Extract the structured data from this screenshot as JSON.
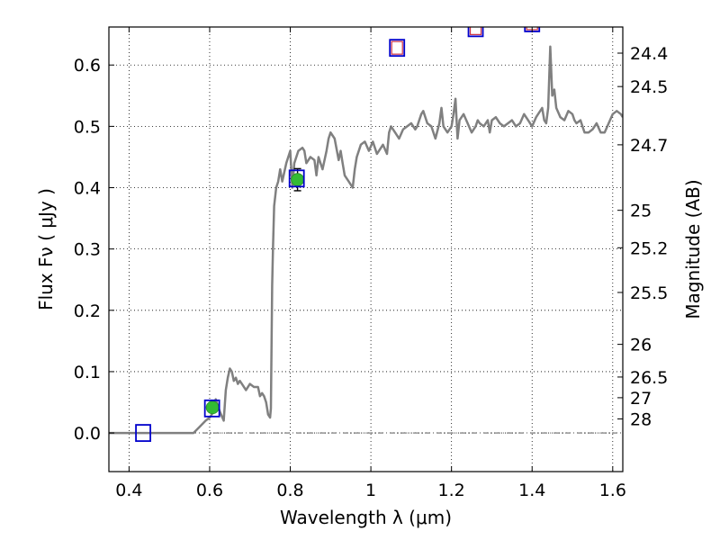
{
  "chart_data": {
    "type": "line",
    "xlabel": "Wavelength  λ (μm)",
    "ylabel": "Flux  Fν  ( μJy )",
    "y2label": "Magnitude (AB)",
    "xlim": [
      0.35,
      1.625
    ],
    "ylim": [
      -0.063,
      0.662
    ],
    "grid": true,
    "xticks": [
      {
        "value": 0.4,
        "label": "0.4"
      },
      {
        "value": 0.6,
        "label": "0.6"
      },
      {
        "value": 0.8,
        "label": "0.8"
      },
      {
        "value": 1.0,
        "label": "1"
      },
      {
        "value": 1.2,
        "label": "1.2"
      },
      {
        "value": 1.4,
        "label": "1.4"
      },
      {
        "value": 1.6,
        "label": "1.6"
      }
    ],
    "yticks": [
      {
        "value": 0.0,
        "label": "0.0"
      },
      {
        "value": 0.1,
        "label": "0.1"
      },
      {
        "value": 0.2,
        "label": "0.2"
      },
      {
        "value": 0.3,
        "label": "0.3"
      },
      {
        "value": 0.4,
        "label": "0.4"
      },
      {
        "value": 0.5,
        "label": "0.5"
      },
      {
        "value": 0.6,
        "label": "0.6"
      }
    ],
    "y2ticks": [
      {
        "flux": 0.6194,
        "label": "24.4"
      },
      {
        "flux": 0.5649,
        "label": "24.5"
      },
      {
        "flux": 0.4699,
        "label": "24.7"
      },
      {
        "flux": 0.3631,
        "label": "25"
      },
      {
        "flux": 0.302,
        "label": "25.2"
      },
      {
        "flux": 0.2291,
        "label": "25.5"
      },
      {
        "flux": 0.1445,
        "label": "26"
      },
      {
        "flux": 0.0912,
        "label": "26.5"
      },
      {
        "flux": 0.0575,
        "label": "27"
      },
      {
        "flux": 0.0229,
        "label": "28"
      }
    ],
    "series": [
      {
        "kind": "model_spectrum",
        "color": "#808080",
        "x": [
          0.35,
          0.56,
          0.575,
          0.59,
          0.6,
          0.61,
          0.615,
          0.625,
          0.635,
          0.64,
          0.645,
          0.65,
          0.655,
          0.66,
          0.665,
          0.67,
          0.675,
          0.68,
          0.69,
          0.7,
          0.71,
          0.72,
          0.725,
          0.73,
          0.735,
          0.74,
          0.745,
          0.75,
          0.752,
          0.755,
          0.757,
          0.76,
          0.765,
          0.77,
          0.775,
          0.78,
          0.79,
          0.8,
          0.805,
          0.81,
          0.82,
          0.83,
          0.835,
          0.84,
          0.85,
          0.86,
          0.865,
          0.87,
          0.88,
          0.89,
          0.895,
          0.9,
          0.91,
          0.92,
          0.925,
          0.93,
          0.935,
          0.945,
          0.955,
          0.96,
          0.965,
          0.975,
          0.985,
          0.995,
          1.005,
          1.015,
          1.02,
          1.03,
          1.04,
          1.045,
          1.05,
          1.06,
          1.07,
          1.08,
          1.09,
          1.1,
          1.11,
          1.115,
          1.12,
          1.125,
          1.13,
          1.14,
          1.15,
          1.16,
          1.17,
          1.175,
          1.18,
          1.19,
          1.2,
          1.205,
          1.21,
          1.215,
          1.22,
          1.23,
          1.24,
          1.25,
          1.26,
          1.265,
          1.27,
          1.28,
          1.29,
          1.295,
          1.3,
          1.31,
          1.32,
          1.33,
          1.34,
          1.35,
          1.36,
          1.37,
          1.38,
          1.39,
          1.4,
          1.41,
          1.42,
          1.425,
          1.43,
          1.435,
          1.44,
          1.445,
          1.45,
          1.455,
          1.46,
          1.47,
          1.48,
          1.49,
          1.5,
          1.505,
          1.51,
          1.52,
          1.525,
          1.53,
          1.54,
          1.55,
          1.56,
          1.57,
          1.58,
          1.59,
          1.6,
          1.61,
          1.62,
          1.625
        ],
        "y": [
          0.0,
          0.0,
          0.01,
          0.02,
          0.025,
          0.035,
          0.055,
          0.035,
          0.02,
          0.07,
          0.09,
          0.105,
          0.1,
          0.085,
          0.09,
          0.08,
          0.085,
          0.08,
          0.07,
          0.08,
          0.075,
          0.075,
          0.06,
          0.065,
          0.06,
          0.05,
          0.03,
          0.025,
          0.04,
          0.24,
          0.3,
          0.37,
          0.4,
          0.41,
          0.43,
          0.41,
          0.44,
          0.46,
          0.4,
          0.44,
          0.46,
          0.465,
          0.46,
          0.44,
          0.45,
          0.445,
          0.42,
          0.45,
          0.43,
          0.46,
          0.48,
          0.49,
          0.48,
          0.445,
          0.46,
          0.44,
          0.42,
          0.41,
          0.4,
          0.43,
          0.45,
          0.47,
          0.475,
          0.46,
          0.475,
          0.455,
          0.46,
          0.47,
          0.455,
          0.49,
          0.5,
          0.49,
          0.48,
          0.495,
          0.5,
          0.505,
          0.495,
          0.5,
          0.51,
          0.52,
          0.525,
          0.505,
          0.5,
          0.48,
          0.505,
          0.53,
          0.5,
          0.49,
          0.5,
          0.52,
          0.545,
          0.48,
          0.51,
          0.52,
          0.505,
          0.49,
          0.5,
          0.51,
          0.505,
          0.5,
          0.51,
          0.49,
          0.51,
          0.515,
          0.505,
          0.5,
          0.505,
          0.51,
          0.5,
          0.505,
          0.52,
          0.51,
          0.5,
          0.515,
          0.525,
          0.53,
          0.51,
          0.505,
          0.53,
          0.63,
          0.55,
          0.56,
          0.53,
          0.515,
          0.51,
          0.525,
          0.52,
          0.51,
          0.505,
          0.51,
          0.5,
          0.49,
          0.49,
          0.495,
          0.505,
          0.49,
          0.49,
          0.505,
          0.52,
          0.525,
          0.52,
          0.515
        ]
      },
      {
        "kind": "observed",
        "marker": "circle",
        "fill": "#33bb33",
        "points": [
          {
            "x": 0.607,
            "y": 0.0415,
            "err": 0.006
          },
          {
            "x": 0.818,
            "y": 0.413,
            "err": 0.018
          }
        ]
      },
      {
        "kind": "model_photometry",
        "marker": "square",
        "stroke": "#0000cc",
        "points": [
          {
            "x": 0.435,
            "y": 0.0
          },
          {
            "x": 0.606,
            "y": 0.04
          },
          {
            "x": 0.816,
            "y": 0.415
          },
          {
            "x": 1.065,
            "y": 0.628
          },
          {
            "x": 1.26,
            "y": 0.66
          },
          {
            "x": 1.4,
            "y": 0.668
          }
        ]
      },
      {
        "kind": "upper_limits",
        "marker": "square",
        "stroke": "#cc3344",
        "points": [
          {
            "x": 1.065,
            "y": 0.628
          },
          {
            "x": 1.26,
            "y": 0.66
          },
          {
            "x": 1.4,
            "y": 0.668
          }
        ]
      }
    ]
  }
}
